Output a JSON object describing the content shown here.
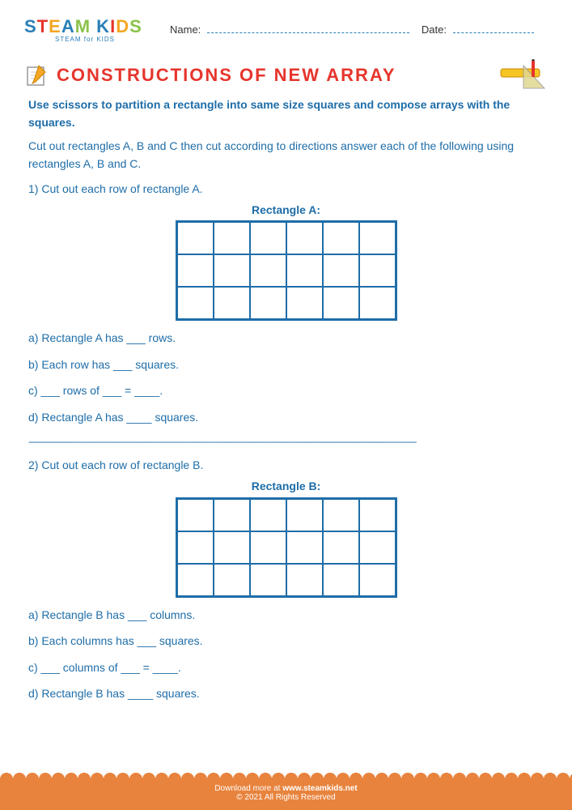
{
  "logo": {
    "text_parts": [
      {
        "t": "S",
        "c": "#2a7fb8"
      },
      {
        "t": "T",
        "c": "#e6352c"
      },
      {
        "t": "E",
        "c": "#f5a623"
      },
      {
        "t": "A",
        "c": "#2a7fb8"
      },
      {
        "t": "M",
        "c": "#8bc34a"
      },
      {
        "t": " ",
        "c": "#fff"
      },
      {
        "t": "K",
        "c": "#2a7fb8"
      },
      {
        "t": "I",
        "c": "#e6352c"
      },
      {
        "t": "D",
        "c": "#f5a623"
      },
      {
        "t": "S",
        "c": "#8bc34a"
      }
    ],
    "subtitle": "STEAM for KIDS"
  },
  "header": {
    "name_label": "Name:",
    "date_label": "Date:"
  },
  "title": "CONSTRUCTIONS OF NEW ARRAY",
  "instruction": "Use scissors to partition a rectangle into same size squares and compose arrays with the squares.",
  "subinstruction": "Cut out rectangles A, B and C then cut according to directions answer each of the following using rectangles A, B and C.",
  "questions": [
    {
      "num": "1)",
      "prompt": "Cut out each row of rectangle A.",
      "grid_label": "Rectangle A:",
      "rows": 3,
      "cols": 6,
      "items": [
        {
          "k": "a)",
          "t": "Rectangle A has ___ rows."
        },
        {
          "k": "b)",
          "t": "Each row has ___ squares."
        },
        {
          "k": "c)",
          "t": "___ rows of ___ = ____."
        },
        {
          "k": "d)",
          "t": "Rectangle A has ____ squares."
        }
      ]
    },
    {
      "num": "2)",
      "prompt": "Cut out each row of rectangle B.",
      "grid_label": "Rectangle B:",
      "rows": 3,
      "cols": 6,
      "items": [
        {
          "k": "a)",
          "t": "Rectangle B has ___ columns."
        },
        {
          "k": "b)",
          "t": "Each columns has ___ squares."
        },
        {
          "k": "c)",
          "t": "___ columns of ___ = ____."
        },
        {
          "k": "d)",
          "t": "Rectangle B has ____ squares."
        }
      ]
    }
  ],
  "footer": {
    "download": "Download more at",
    "site": "www.steamkids.net",
    "copyright": "© 2021 All Rights Reserved"
  },
  "colors": {
    "blue": "#1e6da8",
    "red": "#e6352c",
    "orange": "#e8833d"
  }
}
